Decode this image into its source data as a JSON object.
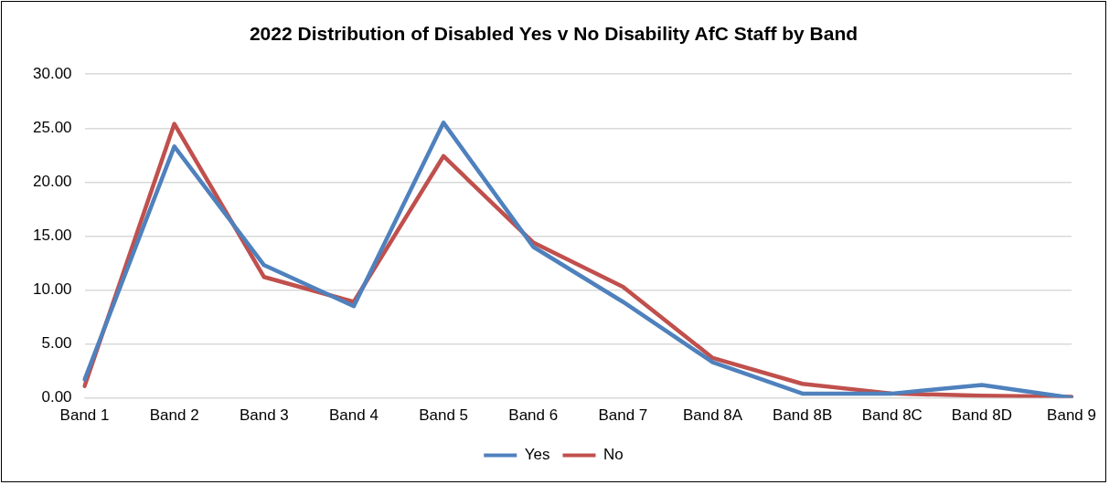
{
  "chart_data": {
    "type": "line",
    "title": "2022 Distribution of Disabled Yes v No Disability AfC Staff by Band",
    "categories": [
      "Band 1",
      "Band 2",
      "Band 3",
      "Band 4",
      "Band 5",
      "Band 6",
      "Band 7",
      "Band 8A",
      "Band 8B",
      "Band 8C",
      "Band 8D",
      "Band 9"
    ],
    "series": [
      {
        "name": "Yes",
        "color": "#4f81bd",
        "values": [
          1.7,
          23.3,
          12.3,
          8.5,
          25.5,
          14.0,
          8.9,
          3.3,
          0.4,
          0.4,
          1.2,
          0.0
        ]
      },
      {
        "name": "No",
        "color": "#c0504d",
        "values": [
          1.1,
          25.4,
          11.2,
          8.9,
          22.4,
          14.4,
          10.3,
          3.7,
          1.3,
          0.4,
          0.2,
          0.1
        ]
      }
    ],
    "ylim": [
      0,
      30
    ],
    "yticks": [
      {
        "value": 0,
        "label": "0.00"
      },
      {
        "value": 5,
        "label": "5.00"
      },
      {
        "value": 10,
        "label": "10.00"
      },
      {
        "value": 15,
        "label": "15.00"
      },
      {
        "value": 20,
        "label": "20.00"
      },
      {
        "value": 25,
        "label": "25.00"
      },
      {
        "value": 30,
        "label": "30.00"
      }
    ],
    "grid": "y",
    "legend": "bottom",
    "marker": "none",
    "line_style": "solid"
  }
}
